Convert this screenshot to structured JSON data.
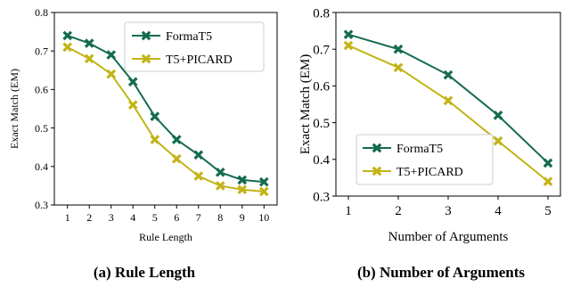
{
  "colors": {
    "formaT5": "#156b4f",
    "picard": "#c3b417"
  },
  "chart_data": [
    {
      "type": "line",
      "x": [
        1,
        2,
        3,
        4,
        5,
        6,
        7,
        8,
        9,
        10
      ],
      "series": [
        {
          "name": "FormaT5",
          "values": [
            0.74,
            0.72,
            0.69,
            0.62,
            0.53,
            0.47,
            0.43,
            0.385,
            0.365,
            0.36
          ]
        },
        {
          "name": "T5+PICARD",
          "values": [
            0.71,
            0.68,
            0.64,
            0.56,
            0.47,
            0.42,
            0.375,
            0.35,
            0.34,
            0.335
          ]
        }
      ],
      "xlabel": "Rule Length",
      "ylabel": "Exact Match (EM)",
      "xticks": [
        "1",
        "2",
        "3",
        "4",
        "5",
        "6",
        "7",
        "8",
        "9",
        "10"
      ],
      "yticks": [
        "0.3",
        "0.4",
        "0.5",
        "0.6",
        "0.7",
        "0.8"
      ],
      "ylim": [
        0.3,
        0.8
      ],
      "legend": "top-right",
      "grid": false,
      "caption": "(a) Rule Length"
    },
    {
      "type": "line",
      "x": [
        1,
        2,
        3,
        4,
        5
      ],
      "series": [
        {
          "name": "FormaT5",
          "values": [
            0.74,
            0.7,
            0.63,
            0.52,
            0.39
          ]
        },
        {
          "name": "T5+PICARD",
          "values": [
            0.71,
            0.65,
            0.56,
            0.45,
            0.34
          ]
        }
      ],
      "xlabel": "Number of Arguments",
      "ylabel": "Exact Match (EM)",
      "xticks": [
        "1",
        "2",
        "3",
        "4",
        "5"
      ],
      "yticks": [
        "0.3",
        "0.4",
        "0.5",
        "0.6",
        "0.7",
        "0.8"
      ],
      "ylim": [
        0.3,
        0.8
      ],
      "legend": "bottom-left",
      "grid": false,
      "caption": "(b) Number of Arguments"
    }
  ]
}
